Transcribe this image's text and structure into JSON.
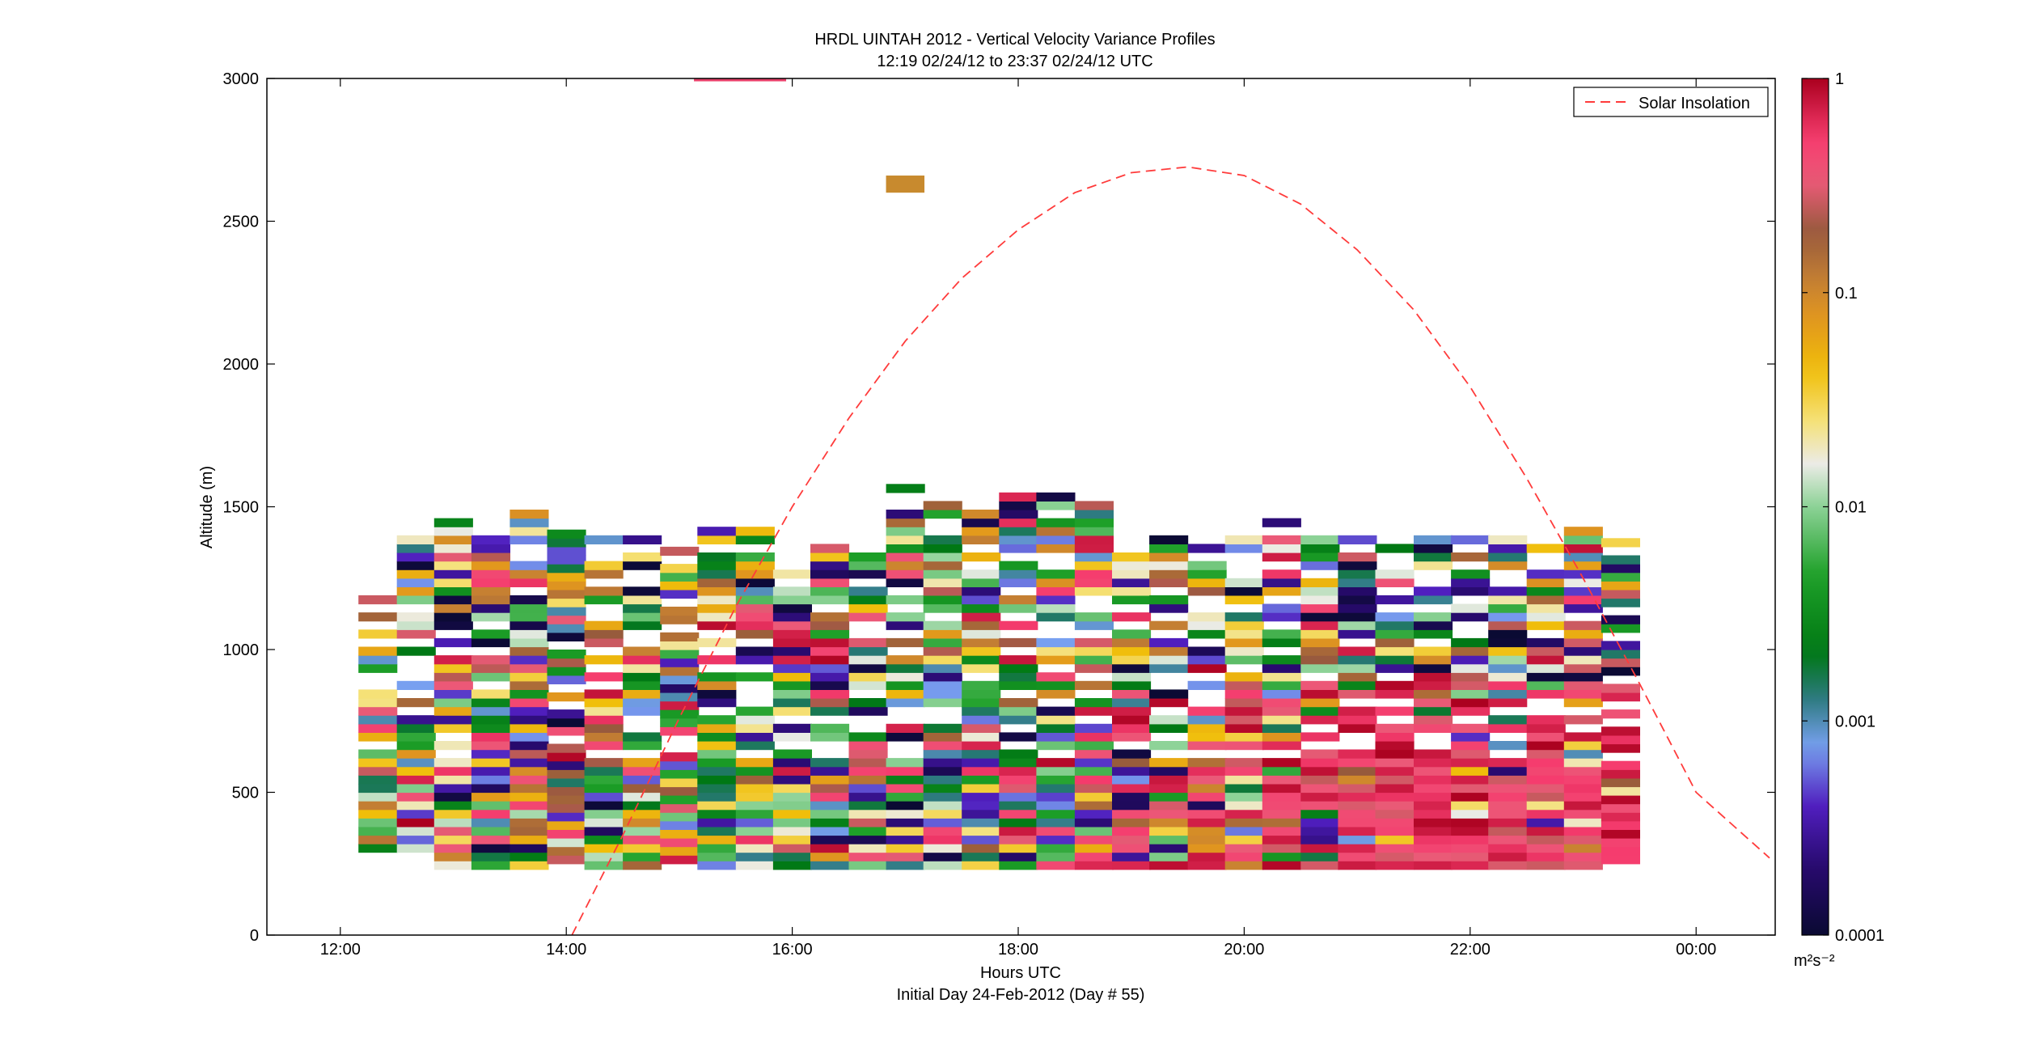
{
  "chart_data": {
    "type": "heatmap",
    "title": "HRDL UINTAH 2012 - Vertical Velocity Variance Profiles",
    "subtitle": "12:19 02/24/12 to 23:37 02/24/12  UTC",
    "xlabel": "Hours UTC",
    "xlabel2": "Initial Day 24-Feb-2012 (Day # 55)",
    "ylabel": "Altitude (m)",
    "xlim": [
      11.35,
      24.7
    ],
    "ylim": [
      0,
      3000
    ],
    "x_ticks": [
      12,
      14,
      16,
      18,
      20,
      22,
      24
    ],
    "x_tick_labels": [
      "12:00",
      "14:00",
      "16:00",
      "18:00",
      "20:00",
      "22:00",
      "00:00"
    ],
    "y_ticks": [
      0,
      500,
      1000,
      1500,
      2000,
      2500,
      3000
    ],
    "y_tick_labels": [
      "0",
      "500",
      "1000",
      "1500",
      "2000",
      "2500",
      "3000"
    ],
    "grid": false,
    "legend": {
      "placement": "top-right",
      "entries": [
        {
          "label": "Solar Insolation",
          "color": "#ff3b3b",
          "style": "dashed"
        }
      ]
    },
    "colorbar": {
      "scale": "log",
      "range": [
        0.0001,
        1
      ],
      "tick_values": [
        1,
        0.1,
        0.01,
        0.001,
        0.0001
      ],
      "tick_labels": [
        "1",
        "0.1",
        "0.01",
        "0.001",
        "0.0001"
      ],
      "unit_label": "m²s⁻²"
    },
    "series": [
      {
        "name": "Solar Insolation",
        "note_x_hours_y_altitude_scaled": true,
        "x": [
          14.05,
          14.5,
          15.0,
          15.5,
          16.0,
          16.5,
          17.0,
          17.5,
          18.0,
          18.5,
          19.0,
          19.5,
          20.0,
          20.5,
          21.0,
          21.5,
          22.0,
          22.5,
          23.0,
          23.5,
          24.0,
          24.65
        ],
        "y": [
          0,
          350,
          760,
          1150,
          1500,
          1810,
          2080,
          2300,
          2470,
          2600,
          2670,
          2690,
          2660,
          2560,
          2400,
          2190,
          1920,
          1600,
          1250,
          880,
          500,
          270
        ]
      }
    ],
    "profile_hours": [
      12.33,
      12.67,
      13.0,
      13.33,
      13.67,
      14.0,
      14.33,
      14.67,
      15.0,
      15.33,
      15.67,
      16.0,
      16.33,
      16.67,
      17.0,
      17.33,
      17.67,
      18.0,
      18.33,
      18.67,
      19.0,
      19.33,
      19.67,
      20.0,
      20.33,
      20.67,
      21.0,
      21.33,
      21.67,
      22.0,
      22.33,
      22.67,
      23.0,
      23.33
    ],
    "profile_top_altitudes": [
      1240,
      1390,
      1470,
      1390,
      1470,
      1420,
      1390,
      1400,
      1360,
      1420,
      1420,
      1280,
      1370,
      1340,
      1570,
      1520,
      1480,
      1540,
      1540,
      1500,
      1330,
      1400,
      1360,
      1410,
      1450,
      1380,
      1380,
      1400,
      1400,
      1380,
      1400,
      1370,
      1420,
      1370
    ],
    "profile_bottom_altitudes": [
      290,
      290,
      230,
      230,
      230,
      250,
      230,
      230,
      250,
      230,
      230,
      230,
      230,
      230,
      230,
      230,
      230,
      230,
      230,
      230,
      230,
      230,
      230,
      230,
      230,
      230,
      230,
      230,
      230,
      230,
      230,
      230,
      230,
      250
    ]
  }
}
